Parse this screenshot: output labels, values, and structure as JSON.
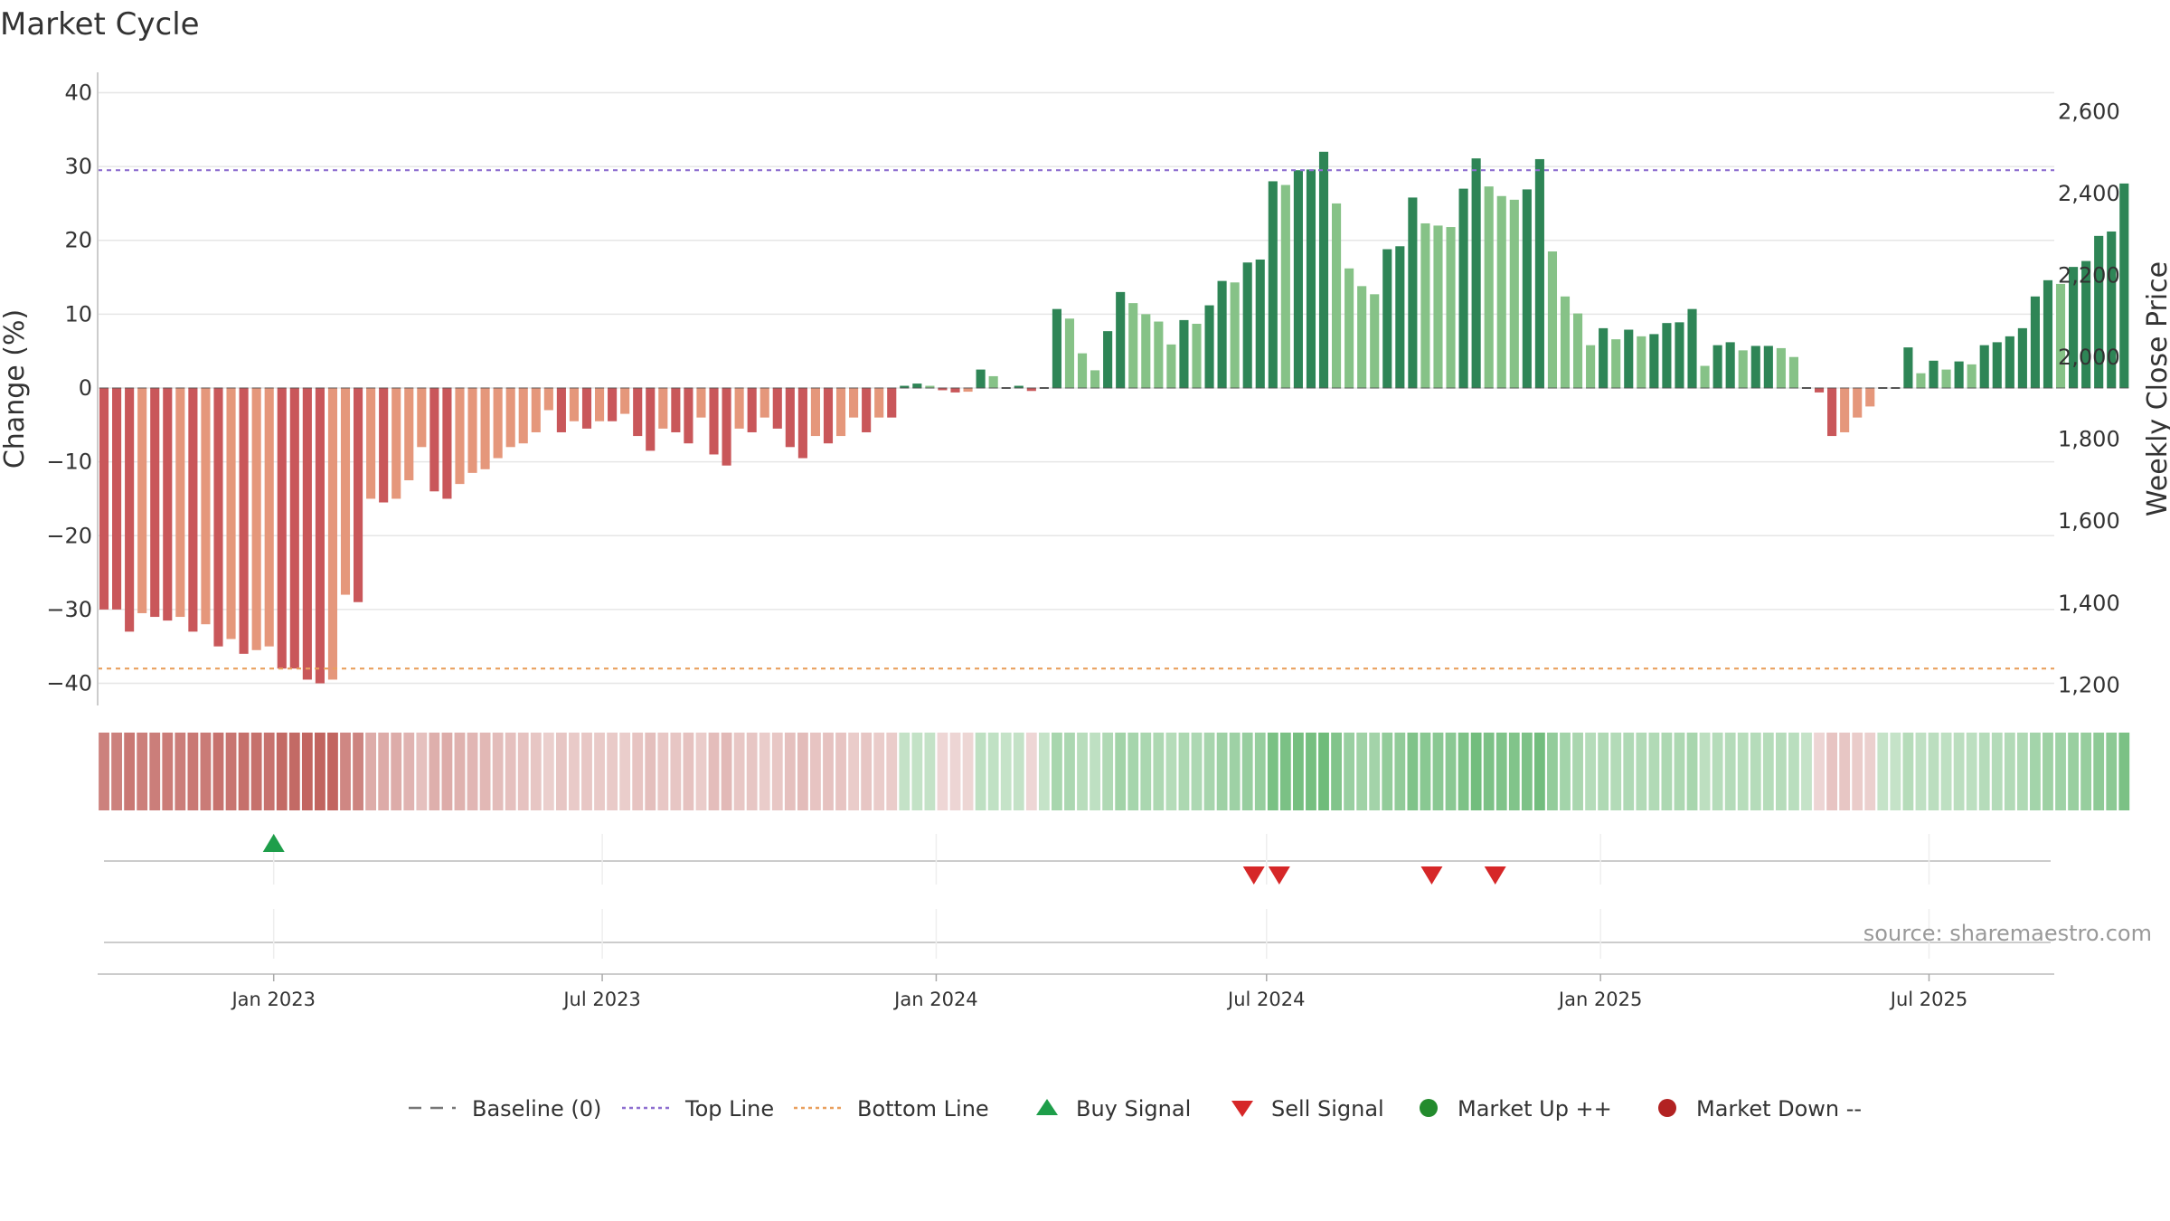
{
  "chart_data": {
    "type": "bar",
    "title": "Market Cycle",
    "ylabel_left": "Change (%)",
    "ylabel_right": "Weekly Close Price",
    "ylim_left": [
      -43,
      43
    ],
    "ylim_right": [
      1150,
      2700
    ],
    "yticks_left": [
      40,
      30,
      20,
      10,
      0,
      -10,
      -20,
      -30,
      -40
    ],
    "yticks_left_labels": [
      "40",
      "30",
      "20",
      "10",
      "0",
      "−10",
      "−20",
      "−30",
      "−40"
    ],
    "yticks_right": [
      2600,
      2400,
      2200,
      2000,
      1800,
      1600,
      1400,
      1200
    ],
    "yticks_right_labels": [
      "2,600",
      "2,400",
      "2,200",
      "2,000",
      "1,800",
      "1,600",
      "1,400",
      "1,200"
    ],
    "x_range": [
      "2022-09-26",
      "2025-09-08"
    ],
    "x_ticks": [
      {
        "date": "2023-01-01",
        "label": "Jan 2023"
      },
      {
        "date": "2023-07-01",
        "label": "Jul 2023"
      },
      {
        "date": "2024-01-01",
        "label": "Jan 2024"
      },
      {
        "date": "2024-07-01",
        "label": "Jul 2024"
      },
      {
        "date": "2025-01-01",
        "label": "Jan 2025"
      },
      {
        "date": "2025-07-01",
        "label": "Jul 2025"
      }
    ],
    "top_line": 29.5,
    "bottom_line": -38,
    "grid": true,
    "legend_position": "bottom",
    "start_date": "2022-09-26",
    "week_step_days": 7,
    "values": [
      -30,
      -30,
      -33,
      -30.5,
      -31,
      -31.5,
      -31,
      -33,
      -32,
      -35,
      -34,
      -36,
      -35.5,
      -35,
      -38,
      -38,
      -39.5,
      -40,
      -39.5,
      -28,
      -29,
      -15,
      -15.5,
      -15,
      -12.5,
      -8,
      -14,
      -15,
      -13,
      -11.5,
      -11,
      -9.5,
      -8,
      -7.5,
      -6,
      -3,
      -6,
      -4.5,
      -5.5,
      -4.5,
      -4.5,
      -3.5,
      -6.5,
      -8.5,
      -5.5,
      -6,
      -7.5,
      -4,
      -9,
      -10.5,
      -5.5,
      -6,
      -4,
      -5.5,
      -8,
      -9.5,
      -6.5,
      -7.5,
      -6.5,
      -4,
      -6,
      -4,
      -4,
      0.3,
      0.6,
      0.3,
      -0.3,
      -0.6,
      -0.5,
      2.5,
      1.6,
      0,
      0.3,
      -0.4,
      0,
      10.7,
      9.4,
      4.7,
      2.4,
      7.7,
      13,
      11.5,
      10,
      9,
      5.9,
      9.2,
      8.7,
      11.2,
      14.5,
      14.3,
      17,
      17.4,
      28,
      27.5,
      29.5,
      29.6,
      32,
      25,
      16.2,
      13.8,
      12.7,
      18.8,
      19.2,
      25.8,
      22.3,
      22,
      21.8,
      27,
      31.1,
      27.3,
      26,
      25.5,
      26.9,
      31,
      18.5,
      12.4,
      10.1,
      5.8,
      8.1,
      6.6,
      7.9,
      7,
      7.3,
      8.8,
      8.9,
      10.7,
      3,
      5.8,
      6.2,
      5.1,
      5.7,
      5.7,
      5.4,
      4.2,
      0,
      -0.6,
      -6.5,
      -6,
      -4,
      -2.5,
      0,
      0,
      5.5,
      2,
      3.7,
      2.5,
      3.6,
      3.2,
      5.8,
      6.2,
      7,
      8.1,
      12.4,
      14.6,
      14.1,
      16.4,
      17.2,
      20.6,
      21.2,
      27.7
    ],
    "bar_colors": {
      "strong_down": "#c9575a",
      "weak_down": "#e5977b",
      "strong_up": "#2e8556",
      "weak_up": "#86c287",
      "near_zero_down": "#b85a57"
    },
    "heatmap_row": {
      "down_color": "#c1645f",
      "up_color": "#5ab267",
      "neutral_color": "#f3e4e3"
    },
    "signals": [
      {
        "type": "buy",
        "date": "2023-01-01"
      },
      {
        "type": "sell",
        "date": "2024-06-24"
      },
      {
        "type": "sell",
        "date": "2024-07-08"
      },
      {
        "type": "sell",
        "date": "2024-09-30"
      },
      {
        "type": "sell",
        "date": "2024-11-04"
      }
    ],
    "legend": [
      {
        "label": "Baseline (0)",
        "kind": "dash",
        "color": "#777777"
      },
      {
        "label": "Top Line",
        "kind": "dot",
        "color": "#8e6fd0"
      },
      {
        "label": "Bottom Line",
        "kind": "dot",
        "color": "#e9a05e"
      },
      {
        "label": "Buy Signal",
        "kind": "triangle-up",
        "color": "#1e9e4a"
      },
      {
        "label": "Sell Signal",
        "kind": "triangle-down",
        "color": "#d62728"
      },
      {
        "label": "Market Up ++",
        "kind": "circle",
        "color": "#238b2d"
      },
      {
        "label": "Market Down --",
        "kind": "circle",
        "color": "#b22222"
      }
    ],
    "source": "source: sharemaestro.com"
  }
}
